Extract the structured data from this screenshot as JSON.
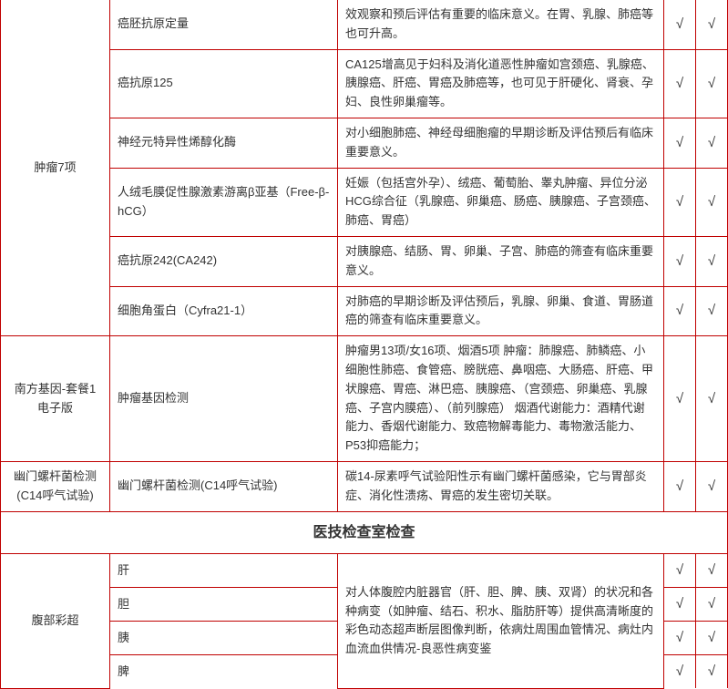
{
  "check": "√",
  "cat1": "肿瘤7项",
  "cat2_line1": "南方基因-套餐1",
  "cat2_line2": "电子版",
  "cat3_line1": "幽门螺杆菌检测",
  "cat3_line2": "(C14呼气试验)",
  "cat4": "腹部彩超",
  "section2": "医技检查室检查",
  "rows": [
    {
      "item": "癌胚抗原定量",
      "desc": "效观察和预后评估有重要的临床意义。在胃、乳腺、肺癌等也可升高。"
    },
    {
      "item": "癌抗原125",
      "desc": "CA125增高见于妇科及消化道恶性肿瘤如宫颈癌、乳腺癌、胰腺癌、肝癌、胃癌及肺癌等，也可见于肝硬化、肾衰、孕妇、良性卵巢瘤等。"
    },
    {
      "item": "神经元特异性烯醇化酶",
      "desc": "对小细胞肺癌、神经母细胞瘤的早期诊断及评估预后有临床重要意义。"
    },
    {
      "item": "人绒毛膜促性腺激素游离β亚基（Free-β-hCG）",
      "desc": "妊娠（包括宫外孕）、绒癌、葡萄胎、睾丸肿瘤、异位分泌HCG综合征（乳腺癌、卵巢癌、肠癌、胰腺癌、子宫颈癌、肺癌、胃癌）"
    },
    {
      "item": "癌抗原242(CA242)",
      "desc": "对胰腺癌、结肠、胃、卵巢、子宫、肺癌的筛查有临床重要意义。"
    },
    {
      "item": "细胞角蛋白（Cyfra21-1）",
      "desc": "对肺癌的早期诊断及评估预后，乳腺、卵巢、食道、胃肠道癌的筛查有临床重要意义。"
    }
  ],
  "row_gene": {
    "item": "肿瘤基因检测",
    "desc": "肿瘤男13项/女16项、烟酒5项 肿瘤：肺腺癌、肺鳞癌、小细胞性肺癌、食管癌、膀胱癌、鼻咽癌、大肠癌、肝癌、甲状腺癌、胃癌、淋巴癌、胰腺癌、（宫颈癌、卵巢癌、乳腺癌、子宫内膜癌）、（前列腺癌） 烟酒代谢能力：酒精代谢能力、香烟代谢能力、致癌物解毒能力、毒物激活能力、P53抑癌能力；"
  },
  "row_c14": {
    "item": "幽门螺杆菌检测(C14呼气试验)",
    "desc": "碳14-尿素呼气试验阳性示有幽门螺杆菌感染，它与胃部炎症、消化性溃疡、胃癌的发生密切关联。"
  },
  "us_rows": [
    "肝",
    "胆",
    "胰",
    "脾"
  ],
  "us_desc": "对人体腹腔内脏器官（肝、胆、脾、胰、双肾）的状况和各种病变（如肿瘤、结石、积水、脂肪肝等）提供高清晰度的彩色动态超声断层图像判断，依病灶周围血管情况、病灶内血流血供情况-良恶性病变鉴"
}
